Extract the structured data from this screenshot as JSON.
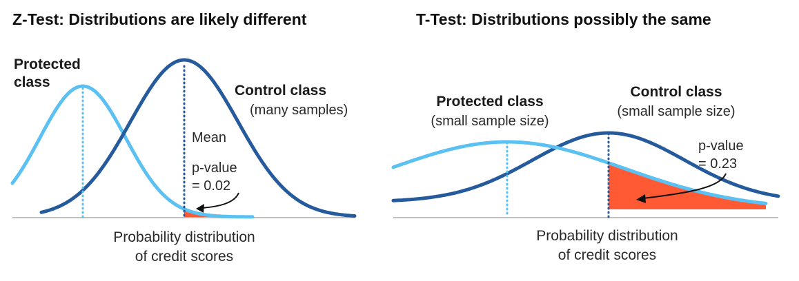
{
  "colors": {
    "protected": "#5bc0f2",
    "control": "#255b9c",
    "pvalue_fill": "#ff5a33",
    "baseline": "#bfbfbf",
    "arrow": "#111111"
  },
  "left_panel": {
    "title": "Z-Test: Distributions are likely different",
    "protected_label_line1": "Protected",
    "protected_label_line2": "class",
    "control_label": "Control class",
    "control_sublabel": "(many samples)",
    "mean_label": "Mean",
    "pvalue_line1": "p-value",
    "pvalue_line2": "= 0.02",
    "axis_line1": "Probability distribution",
    "axis_line2": "of credit scores"
  },
  "right_panel": {
    "title": "T-Test: Distributions possibly the same",
    "protected_label": "Protected class",
    "protected_sublabel": "(small sample size)",
    "control_label": "Control class",
    "control_sublabel": "(small sample size)",
    "pvalue_line1": "p-value",
    "pvalue_line2": "= 0.23",
    "axis_line1": "Probability distribution",
    "axis_line2": "of credit scores"
  }
}
